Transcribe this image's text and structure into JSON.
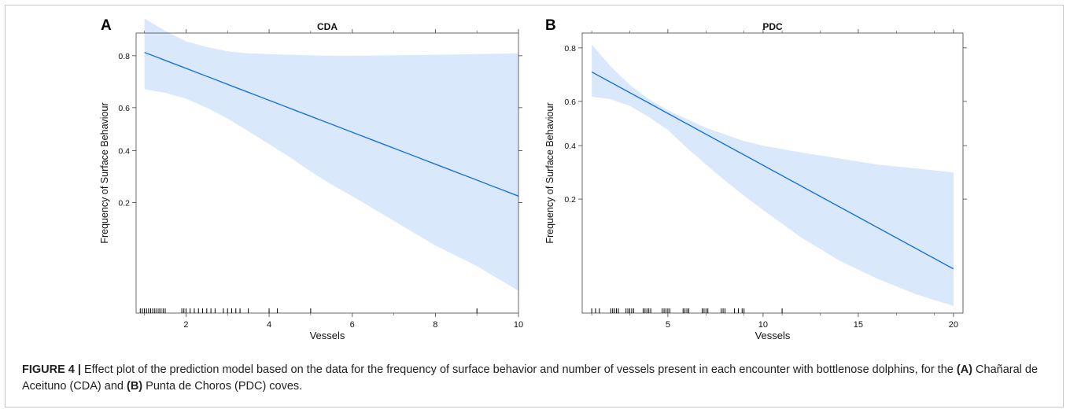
{
  "panels": [
    {
      "letter": "A"
    },
    {
      "letter": "B"
    }
  ],
  "chart_data": [
    {
      "type": "line",
      "title": "CDA",
      "xlabel": "Vessels",
      "ylabel": "Frequency of Surface Behaviour",
      "xlim": [
        0.8,
        10
      ],
      "ylim": [
        0.03,
        0.86
      ],
      "y_scale": "logit",
      "xticks": [
        "2",
        "4",
        "6",
        "8",
        "10"
      ],
      "xtick_values": [
        2,
        4,
        6,
        8,
        10
      ],
      "yticks": [
        "0.2",
        "0.4",
        "0.6",
        "0.8"
      ],
      "ytick_values": [
        0.2,
        0.4,
        0.6,
        0.8
      ],
      "series": [
        {
          "x": [
            1,
            10
          ],
          "y": [
            0.81,
            0.22
          ],
          "ci_x": [
            1,
            1.5,
            2,
            2.5,
            3,
            3.5,
            4,
            4.5,
            5,
            5.5,
            6,
            7,
            8,
            9,
            10
          ],
          "ci_lower": [
            0.68,
            0.665,
            0.64,
            0.6,
            0.55,
            0.49,
            0.43,
            0.37,
            0.31,
            0.26,
            0.22,
            0.15,
            0.1,
            0.07,
            0.045
          ],
          "ci_upper": [
            0.89,
            0.865,
            0.84,
            0.825,
            0.813,
            0.807,
            0.805,
            0.803,
            0.801,
            0.8,
            0.8,
            0.801,
            0.803,
            0.805,
            0.807
          ]
        }
      ],
      "rug": [
        0.9,
        0.95,
        1.0,
        1.05,
        1.1,
        1.15,
        1.2,
        1.25,
        1.3,
        1.35,
        1.4,
        1.45,
        1.5,
        1.9,
        1.95,
        2.0,
        2.1,
        2.2,
        2.3,
        2.4,
        2.5,
        2.6,
        2.7,
        2.9,
        3.0,
        3.1,
        3.2,
        3.3,
        3.5,
        4.0,
        4.2,
        5.0,
        9.0
      ]
    },
    {
      "type": "line",
      "title": "PDC",
      "xlabel": "Vessels",
      "ylabel": "Frequency of Surface Behaviour",
      "xlim": [
        0.5,
        20.5
      ],
      "ylim": [
        0.03,
        0.84
      ],
      "y_scale": "logit",
      "xticks": [
        "5",
        "10",
        "15",
        "20"
      ],
      "xtick_values": [
        5,
        10,
        15,
        20
      ],
      "yticks": [
        "0.2",
        "0.4",
        "0.6",
        "0.8"
      ],
      "ytick_values": [
        0.2,
        0.4,
        0.6,
        0.8
      ],
      "series": [
        {
          "x": [
            1,
            20
          ],
          "y": [
            0.72,
            0.065
          ],
          "ci_x": [
            1,
            2,
            3,
            4,
            5,
            6,
            7,
            8,
            9,
            10,
            12,
            14,
            16,
            18,
            20
          ],
          "ci_lower": [
            0.62,
            0.61,
            0.58,
            0.53,
            0.47,
            0.39,
            0.32,
            0.26,
            0.21,
            0.17,
            0.11,
            0.075,
            0.055,
            0.042,
            0.034
          ],
          "ci_upper": [
            0.81,
            0.74,
            0.67,
            0.61,
            0.56,
            0.52,
            0.48,
            0.45,
            0.42,
            0.4,
            0.37,
            0.345,
            0.32,
            0.305,
            0.29
          ]
        }
      ],
      "rug": [
        1.0,
        1.2,
        1.4,
        2.0,
        2.1,
        2.2,
        2.3,
        2.4,
        2.8,
        2.9,
        3.0,
        3.1,
        3.2,
        3.7,
        3.8,
        3.9,
        4.0,
        4.1,
        4.7,
        4.8,
        4.9,
        5.0,
        5.1,
        5.8,
        5.9,
        6.0,
        6.1,
        6.8,
        6.9,
        7.0,
        7.1,
        7.8,
        7.9,
        8.0,
        8.5,
        8.7,
        8.9,
        9.0,
        11.0
      ]
    }
  ],
  "caption": {
    "figure_label": "FIGURE 4 |",
    "text_part1": " Effect plot of the prediction model based on the data for the frequency of surface behavior and number of vessels present in each encounter with bottlenose dolphins, for the ",
    "bold_a": "(A)",
    "text_part2": " Chañaral de Aceituno (CDA) and ",
    "bold_b": "(B)",
    "text_part3": " Punta de Choros (PDC) coves."
  },
  "colors": {
    "line": "#1a73d9",
    "band": "#d9e8fb",
    "axis": "#444444",
    "text": "#111111"
  }
}
